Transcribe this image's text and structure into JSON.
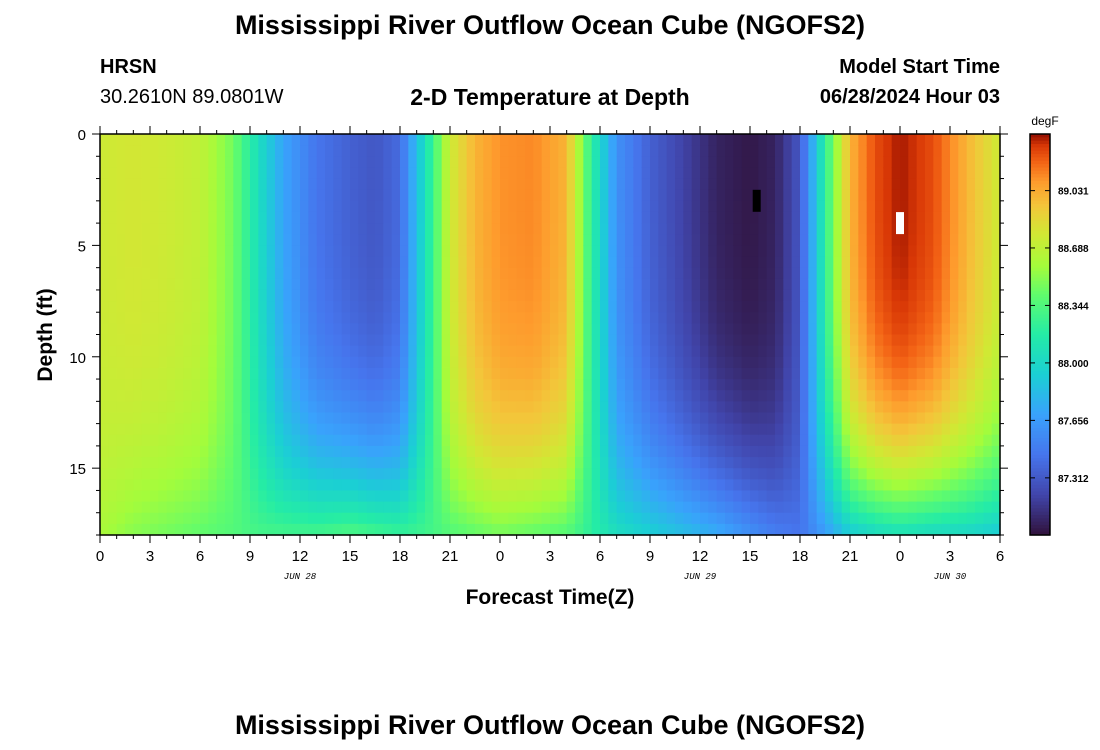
{
  "header": {
    "title": "Mississippi River Outflow Ocean Cube (NGOFS2)",
    "station": "HRSN",
    "coords": "30.2610N  89.0801W",
    "subtitle": "2-D Temperature at Depth",
    "model_start_label": "Model Start Time",
    "model_start_value": "06/28/2024 Hour 03"
  },
  "footer": {
    "title": "Mississippi River Outflow Ocean Cube (NGOFS2)"
  },
  "chart_data": {
    "type": "heatmap",
    "title": "2-D Temperature at Depth",
    "xlabel": "Forecast Time(Z)",
    "ylabel": "Depth (ft)",
    "x_range_hours": [
      0,
      54
    ],
    "y_range_ft": [
      0,
      18
    ],
    "x_tick_labels": [
      "0",
      "3",
      "6",
      "9",
      "12",
      "15",
      "18",
      "21",
      "0",
      "3",
      "6",
      "9",
      "12",
      "15",
      "18",
      "21",
      "0",
      "3",
      "6"
    ],
    "y_ticks": [
      0,
      5,
      10,
      15
    ],
    "date_labels": [
      {
        "label": "JUN 28",
        "hour": 12
      },
      {
        "label": "JUN 29",
        "hour": 36
      },
      {
        "label": "JUN 30",
        "hour": 51
      }
    ],
    "colorbar": {
      "unit": "degF",
      "min": 86.97,
      "max": 89.37,
      "tick_values": [
        89.031,
        88.688,
        88.344,
        88.0,
        87.656,
        87.312
      ],
      "tick_labels": [
        "89.031",
        "88.688",
        "88.344",
        "88.000",
        "87.656",
        "87.312"
      ]
    },
    "time_profile": {
      "hours": [
        0,
        2,
        4,
        6,
        8,
        9.5,
        11,
        13,
        15,
        16.5,
        18,
        19.5,
        21,
        22.5,
        24,
        26,
        28,
        29.5,
        31,
        33,
        35,
        37,
        39,
        40.5,
        42,
        43.5,
        45,
        46.5,
        48,
        50,
        52,
        54
      ],
      "surface_degF": [
        88.75,
        88.78,
        88.75,
        88.7,
        88.45,
        88.05,
        87.7,
        87.45,
        87.35,
        87.3,
        87.4,
        88.05,
        88.75,
        89.0,
        89.1,
        89.12,
        89.0,
        88.2,
        87.6,
        87.35,
        87.2,
        87.05,
        87.0,
        87.05,
        87.3,
        88.2,
        89.0,
        89.25,
        89.35,
        89.25,
        89.0,
        88.75
      ],
      "bottom_degF": [
        88.6,
        88.5,
        88.45,
        88.4,
        88.35,
        88.3,
        88.3,
        88.3,
        88.35,
        88.3,
        88.25,
        88.28,
        88.35,
        88.4,
        88.45,
        88.4,
        88.35,
        88.2,
        88.05,
        87.95,
        87.85,
        87.75,
        87.6,
        87.5,
        87.45,
        87.65,
        87.9,
        88.0,
        88.05,
        88.0,
        87.98,
        87.9
      ]
    },
    "markers": [
      {
        "type": "min",
        "hour": 39.4,
        "depth_ft": 3.0,
        "color": "#000000"
      },
      {
        "type": "max",
        "hour": 48.0,
        "depth_ft": 4.0,
        "color": "#ffffff"
      }
    ]
  }
}
